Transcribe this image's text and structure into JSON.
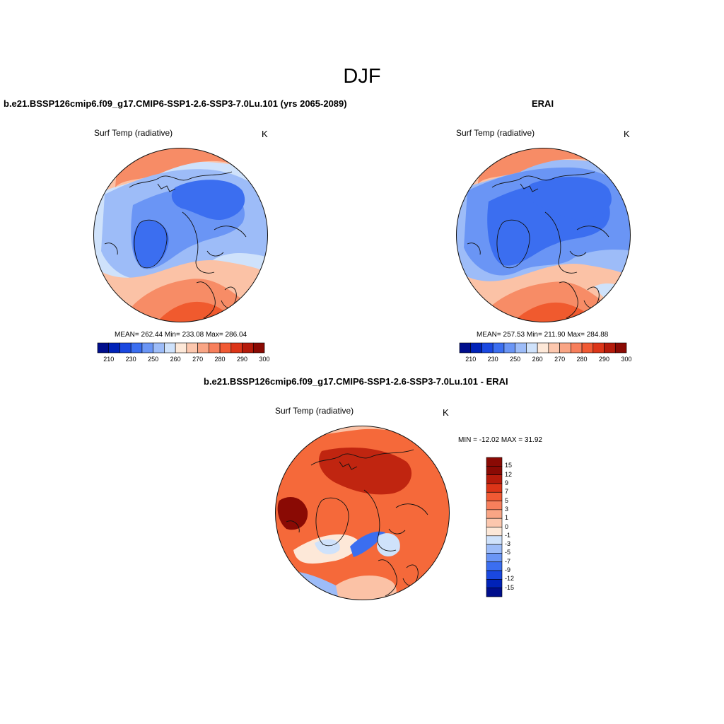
{
  "figure": {
    "title": "DJF"
  },
  "panels": [
    {
      "title": "b.e21.BSSP126cmip6.f09_g17.CMIP6-SSP1-2.6-SSP3-7.0Lu.101 (yrs 2065-2089)",
      "variable": "Surf Temp (radiative)",
      "units": "K",
      "stats": "MEAN= 262.44  Min= 233.08  Max= 286.04"
    },
    {
      "title": "ERAI",
      "variable": "Surf Temp (radiative)",
      "units": "K",
      "stats": "MEAN= 257.53  Min= 211.90  Max= 284.88"
    },
    {
      "title": "b.e21.BSSP126cmip6.f09_g17.CMIP6-SSP1-2.6-SSP3-7.0Lu.101 - ERAI",
      "variable": "Surf Temp (radiative)",
      "units": "K",
      "stats": "MIN = -12.02 MAX =  31.92"
    }
  ],
  "colorbar_abs": {
    "colors": [
      "#000e8c",
      "#0022b8",
      "#1a48e0",
      "#3b6ef0",
      "#6a95f5",
      "#9dbcf8",
      "#cfe2fb",
      "#fde8d8",
      "#fcc7ae",
      "#f9a585",
      "#f77f5c",
      "#f15a34",
      "#dc3518",
      "#b51b0b",
      "#8a0a04"
    ],
    "tick_labels": [
      "210",
      "230",
      "250",
      "260",
      "270",
      "280",
      "290",
      "300"
    ]
  },
  "colorbar_diff": {
    "colors": [
      "#8a0a04",
      "#b51b0b",
      "#dc3518",
      "#f15a34",
      "#f77f5c",
      "#f9a585",
      "#fcc7ae",
      "#fde8d8",
      "#cfe2fb",
      "#9dbcf8",
      "#6a95f5",
      "#3b6ef0",
      "#1a48e0",
      "#0022b8",
      "#000e8c"
    ],
    "tick_labels": [
      "15",
      "12",
      "9",
      "7",
      "5",
      "3",
      "1",
      "0",
      "-1",
      "-3",
      "-5",
      "-7",
      "-9",
      "-12",
      "-15"
    ]
  },
  "palette": {
    "warm_deep": "#f05a2e",
    "warm": "#f78c66",
    "warm_light": "#fbc2a6",
    "neutral": "#fde8d8",
    "cool_light": "#cfe2fb",
    "cool": "#9dbcf8",
    "cool_mid": "#6a95f5",
    "cool_deep": "#3b6ef0",
    "diff_base": "#f5693a",
    "diff_dark": "#c02510",
    "diff_max": "#8a0a04"
  }
}
